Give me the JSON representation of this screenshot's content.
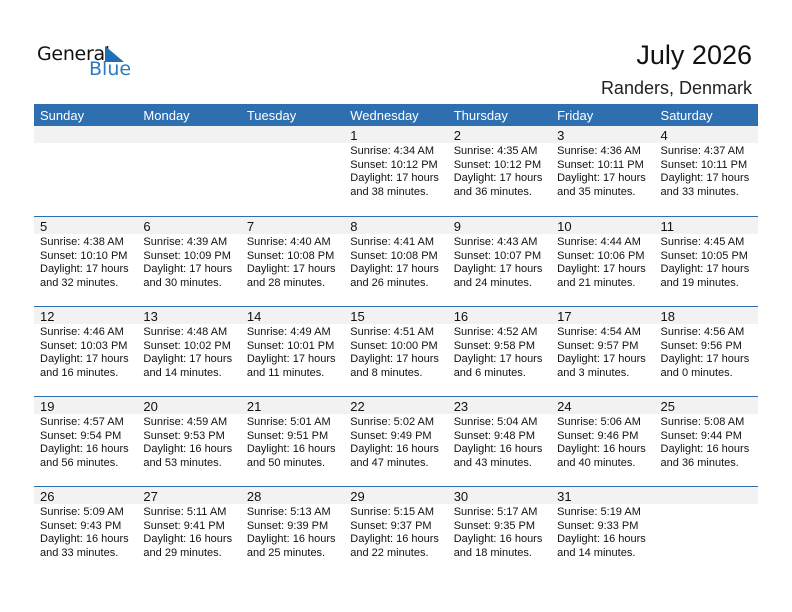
{
  "logo": {
    "text1": "General",
    "text2": "Blue"
  },
  "title": "July 2026",
  "location": "Randers, Denmark",
  "colors": {
    "header": "#2e6fb0",
    "day_band": "#f2f2f2",
    "logo_blue": "#2a7bc2"
  },
  "days": [
    "Sunday",
    "Monday",
    "Tuesday",
    "Wednesday",
    "Thursday",
    "Friday",
    "Saturday"
  ],
  "weeks": [
    [
      null,
      null,
      null,
      {
        "d": "1",
        "sr": "Sunrise: 4:34 AM",
        "ss": "Sunset: 10:12 PM",
        "dl": "Daylight: 17 hours",
        "dm": "and 38 minutes."
      },
      {
        "d": "2",
        "sr": "Sunrise: 4:35 AM",
        "ss": "Sunset: 10:12 PM",
        "dl": "Daylight: 17 hours",
        "dm": "and 36 minutes."
      },
      {
        "d": "3",
        "sr": "Sunrise: 4:36 AM",
        "ss": "Sunset: 10:11 PM",
        "dl": "Daylight: 17 hours",
        "dm": "and 35 minutes."
      },
      {
        "d": "4",
        "sr": "Sunrise: 4:37 AM",
        "ss": "Sunset: 10:11 PM",
        "dl": "Daylight: 17 hours",
        "dm": "and 33 minutes."
      }
    ],
    [
      {
        "d": "5",
        "sr": "Sunrise: 4:38 AM",
        "ss": "Sunset: 10:10 PM",
        "dl": "Daylight: 17 hours",
        "dm": "and 32 minutes."
      },
      {
        "d": "6",
        "sr": "Sunrise: 4:39 AM",
        "ss": "Sunset: 10:09 PM",
        "dl": "Daylight: 17 hours",
        "dm": "and 30 minutes."
      },
      {
        "d": "7",
        "sr": "Sunrise: 4:40 AM",
        "ss": "Sunset: 10:08 PM",
        "dl": "Daylight: 17 hours",
        "dm": "and 28 minutes."
      },
      {
        "d": "8",
        "sr": "Sunrise: 4:41 AM",
        "ss": "Sunset: 10:08 PM",
        "dl": "Daylight: 17 hours",
        "dm": "and 26 minutes."
      },
      {
        "d": "9",
        "sr": "Sunrise: 4:43 AM",
        "ss": "Sunset: 10:07 PM",
        "dl": "Daylight: 17 hours",
        "dm": "and 24 minutes."
      },
      {
        "d": "10",
        "sr": "Sunrise: 4:44 AM",
        "ss": "Sunset: 10:06 PM",
        "dl": "Daylight: 17 hours",
        "dm": "and 21 minutes."
      },
      {
        "d": "11",
        "sr": "Sunrise: 4:45 AM",
        "ss": "Sunset: 10:05 PM",
        "dl": "Daylight: 17 hours",
        "dm": "and 19 minutes."
      }
    ],
    [
      {
        "d": "12",
        "sr": "Sunrise: 4:46 AM",
        "ss": "Sunset: 10:03 PM",
        "dl": "Daylight: 17 hours",
        "dm": "and 16 minutes."
      },
      {
        "d": "13",
        "sr": "Sunrise: 4:48 AM",
        "ss": "Sunset: 10:02 PM",
        "dl": "Daylight: 17 hours",
        "dm": "and 14 minutes."
      },
      {
        "d": "14",
        "sr": "Sunrise: 4:49 AM",
        "ss": "Sunset: 10:01 PM",
        "dl": "Daylight: 17 hours",
        "dm": "and 11 minutes."
      },
      {
        "d": "15",
        "sr": "Sunrise: 4:51 AM",
        "ss": "Sunset: 10:00 PM",
        "dl": "Daylight: 17 hours",
        "dm": "and 8 minutes."
      },
      {
        "d": "16",
        "sr": "Sunrise: 4:52 AM",
        "ss": "Sunset: 9:58 PM",
        "dl": "Daylight: 17 hours",
        "dm": "and 6 minutes."
      },
      {
        "d": "17",
        "sr": "Sunrise: 4:54 AM",
        "ss": "Sunset: 9:57 PM",
        "dl": "Daylight: 17 hours",
        "dm": "and 3 minutes."
      },
      {
        "d": "18",
        "sr": "Sunrise: 4:56 AM",
        "ss": "Sunset: 9:56 PM",
        "dl": "Daylight: 17 hours",
        "dm": "and 0 minutes."
      }
    ],
    [
      {
        "d": "19",
        "sr": "Sunrise: 4:57 AM",
        "ss": "Sunset: 9:54 PM",
        "dl": "Daylight: 16 hours",
        "dm": "and 56 minutes."
      },
      {
        "d": "20",
        "sr": "Sunrise: 4:59 AM",
        "ss": "Sunset: 9:53 PM",
        "dl": "Daylight: 16 hours",
        "dm": "and 53 minutes."
      },
      {
        "d": "21",
        "sr": "Sunrise: 5:01 AM",
        "ss": "Sunset: 9:51 PM",
        "dl": "Daylight: 16 hours",
        "dm": "and 50 minutes."
      },
      {
        "d": "22",
        "sr": "Sunrise: 5:02 AM",
        "ss": "Sunset: 9:49 PM",
        "dl": "Daylight: 16 hours",
        "dm": "and 47 minutes."
      },
      {
        "d": "23",
        "sr": "Sunrise: 5:04 AM",
        "ss": "Sunset: 9:48 PM",
        "dl": "Daylight: 16 hours",
        "dm": "and 43 minutes."
      },
      {
        "d": "24",
        "sr": "Sunrise: 5:06 AM",
        "ss": "Sunset: 9:46 PM",
        "dl": "Daylight: 16 hours",
        "dm": "and 40 minutes."
      },
      {
        "d": "25",
        "sr": "Sunrise: 5:08 AM",
        "ss": "Sunset: 9:44 PM",
        "dl": "Daylight: 16 hours",
        "dm": "and 36 minutes."
      }
    ],
    [
      {
        "d": "26",
        "sr": "Sunrise: 5:09 AM",
        "ss": "Sunset: 9:43 PM",
        "dl": "Daylight: 16 hours",
        "dm": "and 33 minutes."
      },
      {
        "d": "27",
        "sr": "Sunrise: 5:11 AM",
        "ss": "Sunset: 9:41 PM",
        "dl": "Daylight: 16 hours",
        "dm": "and 29 minutes."
      },
      {
        "d": "28",
        "sr": "Sunrise: 5:13 AM",
        "ss": "Sunset: 9:39 PM",
        "dl": "Daylight: 16 hours",
        "dm": "and 25 minutes."
      },
      {
        "d": "29",
        "sr": "Sunrise: 5:15 AM",
        "ss": "Sunset: 9:37 PM",
        "dl": "Daylight: 16 hours",
        "dm": "and 22 minutes."
      },
      {
        "d": "30",
        "sr": "Sunrise: 5:17 AM",
        "ss": "Sunset: 9:35 PM",
        "dl": "Daylight: 16 hours",
        "dm": "and 18 minutes."
      },
      {
        "d": "31",
        "sr": "Sunrise: 5:19 AM",
        "ss": "Sunset: 9:33 PM",
        "dl": "Daylight: 16 hours",
        "dm": "and 14 minutes."
      },
      null
    ]
  ]
}
